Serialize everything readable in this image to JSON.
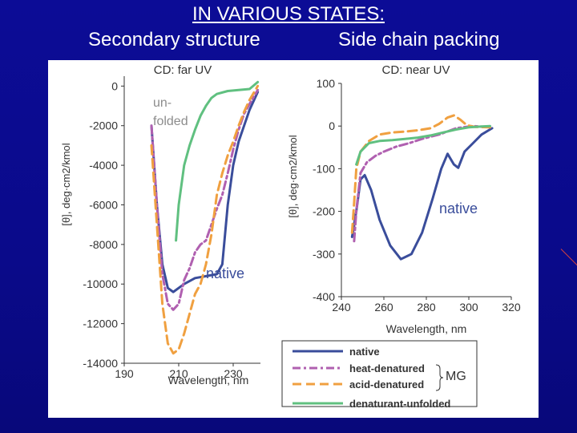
{
  "header": {
    "title": "IN VARIOUS STATES:",
    "left_subtitle": "Secondary structure",
    "right_subtitle": "Side chain packing"
  },
  "colors": {
    "native": "#3a4d9b",
    "heat-denatured": "#b060b0",
    "acid-denatured": "#f0a040",
    "denaturant-unfolded": "#60c080",
    "annotation": "#3a4d9b"
  },
  "legend": {
    "items": [
      {
        "key": "native",
        "label": "native",
        "style": "solid"
      },
      {
        "key": "heat-denatured",
        "label": "heat-denatured",
        "style": "dashdot"
      },
      {
        "key": "acid-denatured",
        "label": "acid-denatured",
        "style": "dashed"
      },
      {
        "key": "denaturant-unfolded",
        "label": "denaturant-unfolded",
        "style": "solid"
      }
    ],
    "group_label": "MG"
  },
  "chart_data": [
    {
      "type": "line",
      "title": "CD: far UV",
      "xlabel": "Wavelength, nm",
      "ylabel": "[θ], deg·cm2/kmol",
      "xlim": [
        190,
        240
      ],
      "ylim": [
        -14000,
        500
      ],
      "x_ticks": [
        "190",
        "210",
        "230"
      ],
      "y_ticks": [
        "0",
        "-2000",
        "-4000",
        "-6000",
        "-8000",
        "-10000",
        "-12000",
        "-14000"
      ],
      "annotations": [
        "un-folded",
        "native"
      ],
      "series": [
        {
          "name": "native",
          "points": [
            [
              200,
              -2000
            ],
            [
              202,
              -6000
            ],
            [
              204,
              -9000
            ],
            [
              206,
              -10200
            ],
            [
              208,
              -10400
            ],
            [
              212,
              -10000
            ],
            [
              216,
              -9700
            ],
            [
              220,
              -9600
            ],
            [
              224,
              -9500
            ],
            [
              226,
              -9000
            ],
            [
              228,
              -6000
            ],
            [
              230,
              -4000
            ],
            [
              232,
              -2800
            ],
            [
              234,
              -2000
            ],
            [
              236,
              -1200
            ],
            [
              239,
              -300
            ]
          ]
        },
        {
          "name": "heat-denatured",
          "points": [
            [
              200,
              -2000
            ],
            [
              202,
              -6000
            ],
            [
              204,
              -9500
            ],
            [
              206,
              -11000
            ],
            [
              208,
              -11300
            ],
            [
              210,
              -11000
            ],
            [
              212,
              -9800
            ],
            [
              214,
              -9200
            ],
            [
              216,
              -8400
            ],
            [
              218,
              -8000
            ],
            [
              220,
              -7800
            ],
            [
              222,
              -7000
            ],
            [
              224,
              -6200
            ],
            [
              226,
              -5500
            ],
            [
              228,
              -4400
            ],
            [
              230,
              -3200
            ],
            [
              232,
              -2200
            ],
            [
              234,
              -1400
            ],
            [
              236,
              -900
            ],
            [
              239,
              -200
            ]
          ]
        },
        {
          "name": "acid-denatured",
          "points": [
            [
              200,
              -3000
            ],
            [
              202,
              -7000
            ],
            [
              204,
              -11000
            ],
            [
              206,
              -13000
            ],
            [
              208,
              -13500
            ],
            [
              210,
              -13300
            ],
            [
              212,
              -12500
            ],
            [
              214,
              -11500
            ],
            [
              216,
              -10500
            ],
            [
              218,
              -10000
            ],
            [
              220,
              -9000
            ],
            [
              222,
              -7500
            ],
            [
              224,
              -5500
            ],
            [
              226,
              -4400
            ],
            [
              228,
              -3500
            ],
            [
              230,
              -2800
            ],
            [
              232,
              -2000
            ],
            [
              234,
              -1300
            ],
            [
              236,
              -700
            ],
            [
              239,
              0
            ]
          ]
        },
        {
          "name": "denaturant-unfolded",
          "points": [
            [
              209,
              -7800
            ],
            [
              210,
              -6000
            ],
            [
              212,
              -4000
            ],
            [
              214,
              -3000
            ],
            [
              216,
              -2200
            ],
            [
              218,
              -1500
            ],
            [
              220,
              -1000
            ],
            [
              222,
              -600
            ],
            [
              224,
              -400
            ],
            [
              228,
              -250
            ],
            [
              232,
              -200
            ],
            [
              236,
              -150
            ],
            [
              239,
              200
            ]
          ]
        }
      ]
    },
    {
      "type": "line",
      "title": "CD: near UV",
      "xlabel": "Wavelength, nm",
      "ylabel": "[θ], deg·cm2/kmol",
      "xlim": [
        240,
        320
      ],
      "ylim": [
        -400,
        100
      ],
      "x_ticks": [
        "240",
        "260",
        "280",
        "300",
        "320"
      ],
      "y_ticks": [
        "100",
        "0",
        "-100",
        "-200",
        "-300",
        "-400"
      ],
      "annotations": [
        "native"
      ],
      "series": [
        {
          "name": "native",
          "points": [
            [
              245,
              -260
            ],
            [
              247,
              -200
            ],
            [
              249,
              -125
            ],
            [
              251,
              -115
            ],
            [
              254,
              -150
            ],
            [
              258,
              -220
            ],
            [
              263,
              -280
            ],
            [
              268,
              -312
            ],
            [
              273,
              -300
            ],
            [
              278,
              -250
            ],
            [
              283,
              -170
            ],
            [
              287,
              -100
            ],
            [
              290,
              -65
            ],
            [
              293,
              -90
            ],
            [
              295,
              -98
            ],
            [
              298,
              -60
            ],
            [
              302,
              -40
            ],
            [
              306,
              -20
            ],
            [
              311,
              -5
            ]
          ]
        },
        {
          "name": "heat-denatured",
          "points": [
            [
              246,
              -270
            ],
            [
              247,
              -200
            ],
            [
              249,
              -110
            ],
            [
              252,
              -85
            ],
            [
              256,
              -70
            ],
            [
              260,
              -60
            ],
            [
              266,
              -48
            ],
            [
              272,
              -40
            ],
            [
              278,
              -30
            ],
            [
              286,
              -20
            ],
            [
              294,
              -5
            ],
            [
              302,
              0
            ],
            [
              310,
              -3
            ]
          ]
        },
        {
          "name": "acid-denatured",
          "points": [
            [
              245,
              -250
            ],
            [
              246,
              -180
            ],
            [
              247,
              -100
            ],
            [
              249,
              -60
            ],
            [
              253,
              -35
            ],
            [
              258,
              -20
            ],
            [
              264,
              -15
            ],
            [
              270,
              -13
            ],
            [
              276,
              -10
            ],
            [
              282,
              -5
            ],
            [
              286,
              5
            ],
            [
              290,
              20
            ],
            [
              293,
              25
            ],
            [
              296,
              15
            ],
            [
              299,
              2
            ],
            [
              303,
              -2
            ],
            [
              310,
              -3
            ]
          ]
        },
        {
          "name": "denaturant-unfolded",
          "points": [
            [
              247,
              -90
            ],
            [
              249,
              -60
            ],
            [
              253,
              -40
            ],
            [
              258,
              -35
            ],
            [
              264,
              -33
            ],
            [
              270,
              -30
            ],
            [
              276,
              -27
            ],
            [
              282,
              -22
            ],
            [
              288,
              -15
            ],
            [
              294,
              -8
            ],
            [
              300,
              -3
            ],
            [
              306,
              -1
            ],
            [
              310,
              0
            ]
          ]
        }
      ]
    }
  ]
}
